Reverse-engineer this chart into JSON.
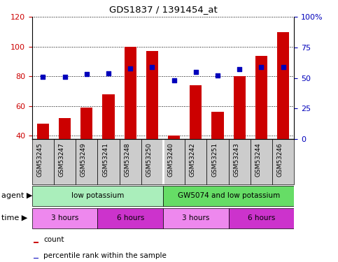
{
  "title": "GDS1837 / 1391454_at",
  "samples": [
    "GSM53245",
    "GSM53247",
    "GSM53249",
    "GSM53241",
    "GSM53248",
    "GSM53250",
    "GSM53240",
    "GSM53242",
    "GSM53251",
    "GSM53243",
    "GSM53244",
    "GSM53246"
  ],
  "counts": [
    48,
    52,
    59,
    68,
    100,
    97,
    40,
    74,
    56,
    80,
    94,
    110
  ],
  "percentiles": [
    51,
    51,
    53,
    54,
    58,
    59,
    48,
    55,
    52,
    57,
    59,
    59
  ],
  "ylim_left": [
    38,
    120
  ],
  "ylim_right": [
    0,
    100
  ],
  "yticks_left": [
    40,
    60,
    80,
    100,
    120
  ],
  "yticks_right": [
    0,
    25,
    50,
    75,
    100
  ],
  "yticklabels_right": [
    "0",
    "25",
    "50",
    "75",
    "100%"
  ],
  "bar_color": "#cc0000",
  "dot_color": "#0000bb",
  "bar_bottom": 38,
  "agent_groups": [
    {
      "label": "low potassium",
      "start": 0,
      "end": 6,
      "color": "#aaeebb"
    },
    {
      "label": "GW5074 and low potassium",
      "start": 6,
      "end": 12,
      "color": "#66dd66"
    }
  ],
  "time_groups": [
    {
      "label": "3 hours",
      "start": 0,
      "end": 3,
      "color": "#ee88ee"
    },
    {
      "label": "6 hours",
      "start": 3,
      "end": 6,
      "color": "#cc33cc"
    },
    {
      "label": "3 hours",
      "start": 6,
      "end": 9,
      "color": "#ee88ee"
    },
    {
      "label": "6 hours",
      "start": 9,
      "end": 12,
      "color": "#cc33cc"
    }
  ],
  "tick_color_left": "#cc0000",
  "tick_color_right": "#0000bb",
  "legend_count_color": "#cc0000",
  "legend_pct_color": "#0000bb",
  "agent_label": "agent",
  "time_label": "time",
  "arrow": "▶"
}
